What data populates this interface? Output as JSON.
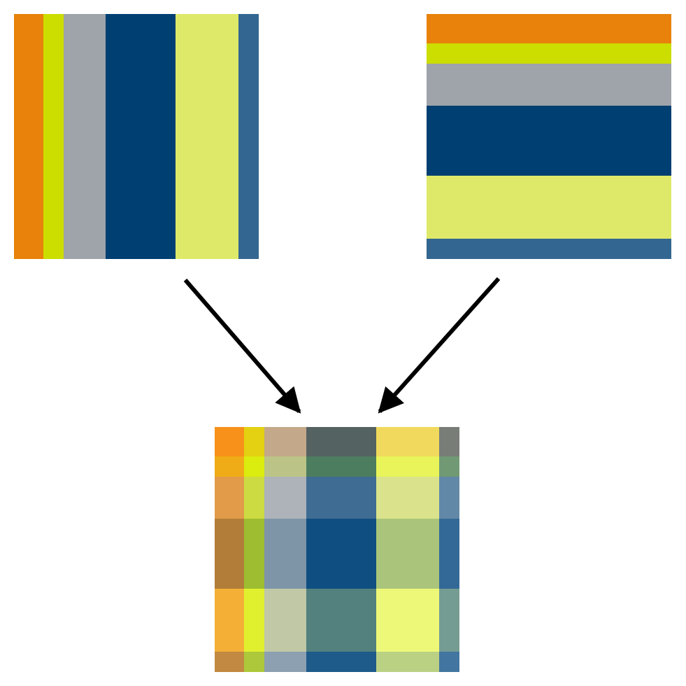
{
  "stripes": {
    "colors": [
      "#E8820A",
      "#CCDD00",
      "#9EA4AA",
      "#003F72",
      "#DEE969",
      "#336690"
    ]
  }
}
